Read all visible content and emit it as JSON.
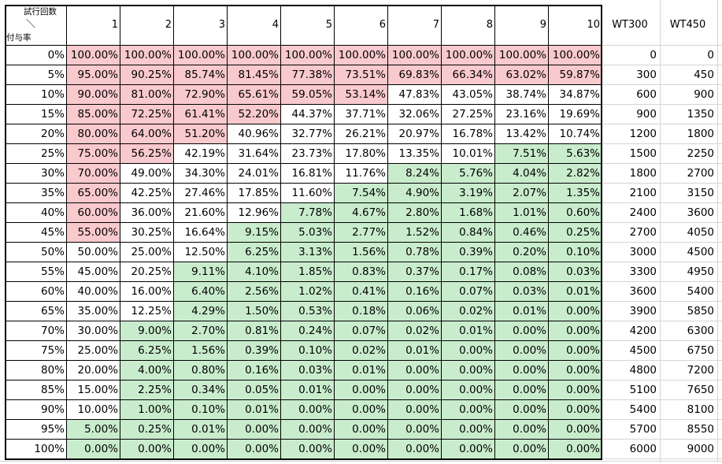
{
  "colors": {
    "red": "#f8c9cd",
    "green": "#c9eccd",
    "white": "#ffffff"
  },
  "corner": {
    "top": "試行回数",
    "mid": "＼",
    "bottom": "付与率"
  },
  "headers": [
    "1",
    "2",
    "3",
    "4",
    "5",
    "6",
    "7",
    "8",
    "9",
    "10",
    "WT300",
    "WT450"
  ],
  "rows": [
    {
      "label": "0%",
      "values": [
        "100.00%",
        "100.00%",
        "100.00%",
        "100.00%",
        "100.00%",
        "100.00%",
        "100.00%",
        "100.00%",
        "100.00%",
        "100.00%"
      ],
      "wt300": "0",
      "wt450": "0",
      "fills": "rrrrrrrrrr"
    },
    {
      "label": "5%",
      "values": [
        "95.00%",
        "90.25%",
        "85.74%",
        "81.45%",
        "77.38%",
        "73.51%",
        "69.83%",
        "66.34%",
        "63.02%",
        "59.87%"
      ],
      "wt300": "300",
      "wt450": "450",
      "fills": "rrrrrrrrrr"
    },
    {
      "label": "10%",
      "values": [
        "90.00%",
        "81.00%",
        "72.90%",
        "65.61%",
        "59.05%",
        "53.14%",
        "47.83%",
        "43.05%",
        "38.74%",
        "34.87%"
      ],
      "wt300": "600",
      "wt450": "900",
      "fills": "rrrrrrwwww"
    },
    {
      "label": "15%",
      "values": [
        "85.00%",
        "72.25%",
        "61.41%",
        "52.20%",
        "44.37%",
        "37.71%",
        "32.06%",
        "27.25%",
        "23.16%",
        "19.69%"
      ],
      "wt300": "900",
      "wt450": "1350",
      "fills": "rrrrwwwwww"
    },
    {
      "label": "20%",
      "values": [
        "80.00%",
        "64.00%",
        "51.20%",
        "40.96%",
        "32.77%",
        "26.21%",
        "20.97%",
        "16.78%",
        "13.42%",
        "10.74%"
      ],
      "wt300": "1200",
      "wt450": "1800",
      "fills": "rrrwwwwwww"
    },
    {
      "label": "25%",
      "values": [
        "75.00%",
        "56.25%",
        "42.19%",
        "31.64%",
        "23.73%",
        "17.80%",
        "13.35%",
        "10.01%",
        "7.51%",
        "5.63%"
      ],
      "wt300": "1500",
      "wt450": "2250",
      "fills": "rrwwwwwwgg"
    },
    {
      "label": "30%",
      "values": [
        "70.00%",
        "49.00%",
        "34.30%",
        "24.01%",
        "16.81%",
        "11.76%",
        "8.24%",
        "5.76%",
        "4.04%",
        "2.82%"
      ],
      "wt300": "1800",
      "wt450": "2700",
      "fills": "rwwwwwgggg"
    },
    {
      "label": "35%",
      "values": [
        "65.00%",
        "42.25%",
        "27.46%",
        "17.85%",
        "11.60%",
        "7.54%",
        "4.90%",
        "3.19%",
        "2.07%",
        "1.35%"
      ],
      "wt300": "2100",
      "wt450": "3150",
      "fills": "rwwwwggggg"
    },
    {
      "label": "40%",
      "values": [
        "60.00%",
        "36.00%",
        "21.60%",
        "12.96%",
        "7.78%",
        "4.67%",
        "2.80%",
        "1.68%",
        "1.01%",
        "0.60%"
      ],
      "wt300": "2400",
      "wt450": "3600",
      "fills": "rwwwgggggg"
    },
    {
      "label": "45%",
      "values": [
        "55.00%",
        "30.25%",
        "16.64%",
        "9.15%",
        "5.03%",
        "2.77%",
        "1.52%",
        "0.84%",
        "0.46%",
        "0.25%"
      ],
      "wt300": "2700",
      "wt450": "4050",
      "fills": "rwwggggggg"
    },
    {
      "label": "50%",
      "values": [
        "50.00%",
        "25.00%",
        "12.50%",
        "6.25%",
        "3.13%",
        "1.56%",
        "0.78%",
        "0.39%",
        "0.20%",
        "0.10%"
      ],
      "wt300": "3000",
      "wt450": "4500",
      "fills": "wwwggggggg"
    },
    {
      "label": "55%",
      "values": [
        "45.00%",
        "20.25%",
        "9.11%",
        "4.10%",
        "1.85%",
        "0.83%",
        "0.37%",
        "0.17%",
        "0.08%",
        "0.03%"
      ],
      "wt300": "3300",
      "wt450": "4950",
      "fills": "wwgggggggg"
    },
    {
      "label": "60%",
      "values": [
        "40.00%",
        "16.00%",
        "6.40%",
        "2.56%",
        "1.02%",
        "0.41%",
        "0.16%",
        "0.07%",
        "0.03%",
        "0.01%"
      ],
      "wt300": "3600",
      "wt450": "5400",
      "fills": "wwgggggggg"
    },
    {
      "label": "65%",
      "values": [
        "35.00%",
        "12.25%",
        "4.29%",
        "1.50%",
        "0.53%",
        "0.18%",
        "0.06%",
        "0.02%",
        "0.01%",
        "0.00%"
      ],
      "wt300": "3900",
      "wt450": "5850",
      "fills": "wwgggggggg"
    },
    {
      "label": "70%",
      "values": [
        "30.00%",
        "9.00%",
        "2.70%",
        "0.81%",
        "0.24%",
        "0.07%",
        "0.02%",
        "0.01%",
        "0.00%",
        "0.00%"
      ],
      "wt300": "4200",
      "wt450": "6300",
      "fills": "wggggggggg"
    },
    {
      "label": "75%",
      "values": [
        "25.00%",
        "6.25%",
        "1.56%",
        "0.39%",
        "0.10%",
        "0.02%",
        "0.01%",
        "0.00%",
        "0.00%",
        "0.00%"
      ],
      "wt300": "4500",
      "wt450": "6750",
      "fills": "wggggggggg"
    },
    {
      "label": "80%",
      "values": [
        "20.00%",
        "4.00%",
        "0.80%",
        "0.16%",
        "0.03%",
        "0.01%",
        "0.00%",
        "0.00%",
        "0.00%",
        "0.00%"
      ],
      "wt300": "4800",
      "wt450": "7200",
      "fills": "wggggggggg"
    },
    {
      "label": "85%",
      "values": [
        "15.00%",
        "2.25%",
        "0.34%",
        "0.05%",
        "0.01%",
        "0.00%",
        "0.00%",
        "0.00%",
        "0.00%",
        "0.00%"
      ],
      "wt300": "5100",
      "wt450": "7650",
      "fills": "wggggggggg"
    },
    {
      "label": "90%",
      "values": [
        "10.00%",
        "1.00%",
        "0.10%",
        "0.01%",
        "0.00%",
        "0.00%",
        "0.00%",
        "0.00%",
        "0.00%",
        "0.00%"
      ],
      "wt300": "5400",
      "wt450": "8100",
      "fills": "wggggggggg"
    },
    {
      "label": "95%",
      "values": [
        "5.00%",
        "0.25%",
        "0.01%",
        "0.00%",
        "0.00%",
        "0.00%",
        "0.00%",
        "0.00%",
        "0.00%",
        "0.00%"
      ],
      "wt300": "5700",
      "wt450": "8550",
      "fills": "gggggggggg"
    },
    {
      "label": "100%",
      "values": [
        "0.00%",
        "0.00%",
        "0.00%",
        "0.00%",
        "0.00%",
        "0.00%",
        "0.00%",
        "0.00%",
        "0.00%",
        "0.00%"
      ],
      "wt300": "6000",
      "wt450": "9000",
      "fills": "gggggggggg"
    }
  ]
}
